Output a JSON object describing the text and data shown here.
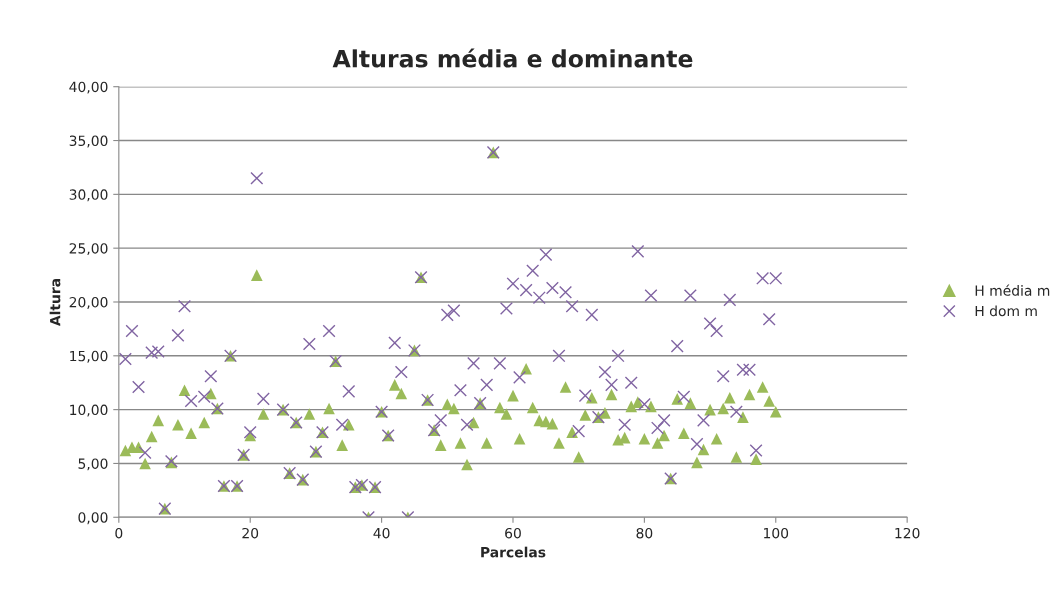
{
  "chart_data": {
    "type": "scatter",
    "title": "Alturas média e dominante",
    "xlabel": "Parcelas",
    "ylabel": "Altura",
    "x": [
      1,
      2,
      3,
      4,
      5,
      6,
      7,
      8,
      9,
      10,
      11,
      12,
      13,
      14,
      15,
      16,
      17,
      18,
      19,
      20,
      21,
      22,
      23,
      24,
      25,
      26,
      27,
      28,
      29,
      30,
      31,
      32,
      33,
      34,
      35,
      36,
      37,
      38,
      39,
      40,
      41,
      42,
      43,
      44,
      45,
      46,
      47,
      48,
      49,
      50,
      51,
      52,
      53,
      54,
      55,
      56,
      57,
      58,
      59,
      60,
      61,
      62,
      63,
      64,
      65,
      66,
      67,
      68,
      69,
      70,
      71,
      72,
      73,
      74,
      75,
      76,
      77,
      78,
      79,
      80,
      81,
      82,
      83,
      84,
      85,
      86,
      87,
      88,
      89,
      90,
      91,
      92,
      93,
      94,
      95,
      96,
      97,
      98,
      99,
      100
    ],
    "series": [
      {
        "name": "H média m",
        "color": "#9bbb59",
        "marker": "triangle",
        "values": [
          6.2,
          6.5,
          6.5,
          5.0,
          7.5,
          9.0,
          0.8,
          5.1,
          8.6,
          11.8,
          7.8,
          null,
          8.8,
          11.5,
          10.1,
          2.9,
          15.0,
          2.9,
          5.8,
          7.6,
          22.5,
          9.6,
          null,
          null,
          10.0,
          4.1,
          8.8,
          3.5,
          9.6,
          6.1,
          7.9,
          10.1,
          14.5,
          6.7,
          8.6,
          2.8,
          3.0,
          0,
          2.8,
          9.8,
          7.6,
          12.3,
          11.5,
          0,
          15.5,
          22.3,
          10.9,
          8.1,
          6.7,
          10.5,
          10.1,
          6.9,
          4.9,
          8.8,
          10.6,
          6.9,
          33.9,
          10.2,
          9.6,
          11.3,
          7.3,
          13.8,
          10.2,
          9.0,
          8.9,
          8.7,
          6.9,
          12.1,
          7.9,
          5.6,
          9.5,
          11.1,
          9.3,
          9.7,
          11.4,
          7.2,
          7.4,
          10.3,
          10.7,
          7.3,
          10.3,
          6.9,
          7.6,
          3.6,
          11.0,
          7.8,
          10.6,
          5.1,
          6.3,
          10.0,
          7.3,
          10.1,
          11.1,
          5.6,
          9.3,
          11.4,
          5.4,
          12.1,
          10.8,
          9.8
        ]
      },
      {
        "name": "H dom m",
        "color": "#8064a2",
        "marker": "cross",
        "values": [
          14.7,
          17.3,
          12.1,
          6.0,
          15.3,
          15.4,
          0.8,
          5.2,
          16.9,
          19.6,
          10.8,
          null,
          11.2,
          13.1,
          10.1,
          2.9,
          15.0,
          2.9,
          5.8,
          7.9,
          31.5,
          11.0,
          null,
          null,
          10.0,
          4.1,
          8.8,
          3.5,
          16.1,
          6.1,
          7.9,
          17.3,
          14.5,
          8.6,
          11.7,
          2.8,
          3.0,
          0,
          2.8,
          9.8,
          7.6,
          16.2,
          13.5,
          0,
          15.5,
          22.3,
          10.9,
          8.1,
          9.0,
          18.8,
          19.2,
          11.8,
          8.6,
          14.3,
          10.6,
          12.3,
          33.9,
          14.3,
          19.4,
          21.7,
          13.0,
          21.1,
          22.9,
          20.4,
          24.4,
          21.3,
          15.0,
          20.9,
          19.6,
          8.0,
          11.3,
          18.8,
          9.3,
          13.5,
          12.3,
          15.0,
          8.6,
          12.5,
          24.7,
          10.5,
          20.6,
          8.3,
          9.0,
          3.6,
          15.9,
          11.2,
          20.6,
          6.8,
          9.0,
          18.0,
          17.3,
          13.1,
          20.2,
          9.8,
          13.7,
          13.7,
          6.2,
          22.2,
          18.4,
          22.2
        ]
      }
    ],
    "xlim": [
      0,
      120
    ],
    "xticks": [
      0,
      20,
      40,
      60,
      80,
      100,
      120
    ],
    "ylim": [
      0,
      40
    ],
    "yticks": [
      {
        "value": 0,
        "label": "0,00"
      },
      {
        "value": 5,
        "label": "5,00"
      },
      {
        "value": 10,
        "label": "10,00"
      },
      {
        "value": 15,
        "label": "15,00"
      },
      {
        "value": 20,
        "label": "20,00"
      },
      {
        "value": 25,
        "label": "25,00"
      },
      {
        "value": 30,
        "label": "30,00"
      },
      {
        "value": 35,
        "label": "35,00"
      },
      {
        "value": 40,
        "label": "40,00"
      }
    ],
    "grid": "y",
    "legend": "right"
  }
}
